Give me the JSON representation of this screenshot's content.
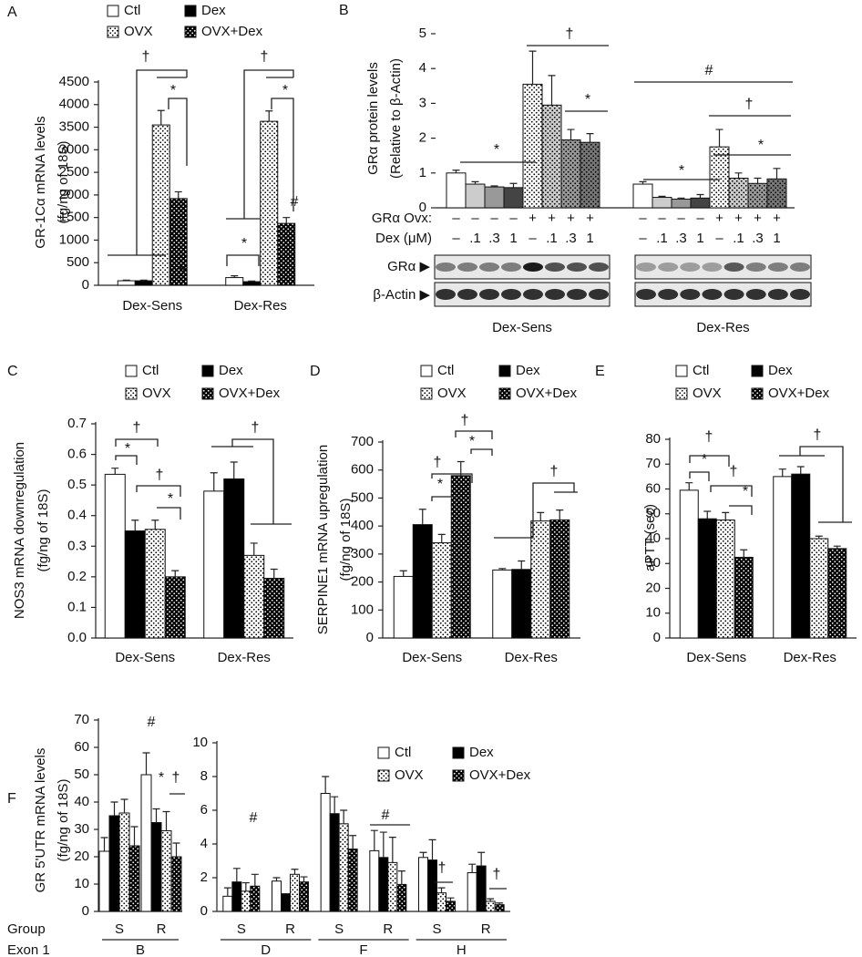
{
  "chart_data": [
    {
      "type": "bar",
      "label": "A",
      "ylabel": [
        "GR-1Cα mRNA levels",
        "(fg/ng of 18S)"
      ],
      "categories": [
        "Dex-Sens",
        "Dex-Res"
      ],
      "series": [
        {
          "name": "Ctl",
          "color": "#ffffff",
          "pattern": "solid",
          "values": [
            100,
            170
          ],
          "errors": [
            15,
            40
          ]
        },
        {
          "name": "Dex",
          "color": "#000000",
          "pattern": "solid",
          "values": [
            100,
            80
          ],
          "errors": [
            15,
            15
          ]
        },
        {
          "name": "OVX",
          "color": "#ffffff",
          "pattern": "dots",
          "values": [
            3550,
            3630
          ],
          "errors": [
            320,
            230
          ]
        },
        {
          "name": "OVX+Dex",
          "color": "#000000",
          "pattern": "dots",
          "values": [
            1920,
            1370
          ],
          "errors": [
            150,
            130
          ]
        }
      ],
      "ylim": [
        0,
        4500
      ],
      "yticks": [
        0,
        500,
        1000,
        1500,
        2000,
        2500,
        3000,
        3500,
        4000,
        4500
      ],
      "annotations": [
        "†",
        "*",
        "†",
        "*",
        "#",
        "*",
        "#"
      ]
    },
    {
      "type": "bar",
      "label": "B",
      "ylabel": [
        "GRα protein levels",
        "(Relative to β-Actin)"
      ],
      "groups": [
        "Dex-Sens",
        "Dex-Res"
      ],
      "values": [
        1.0,
        0.68,
        0.6,
        0.58,
        3.55,
        2.95,
        1.95,
        1.88,
        0.68,
        0.3,
        0.25,
        0.28,
        1.75,
        0.85,
        0.7,
        0.83
      ],
      "errors": [
        0.08,
        0.07,
        0.03,
        0.12,
        0.95,
        0.85,
        0.3,
        0.25,
        0.07,
        0.03,
        0.03,
        0.1,
        0.5,
        0.15,
        0.15,
        0.3
      ],
      "colors": [
        "#ffffff",
        "#cccccc",
        "#999999",
        "#444444",
        "#ffffff",
        "#cccccc",
        "#999999",
        "#777777",
        "#ffffff",
        "#cccccc",
        "#999999",
        "#444444",
        "#ffffff",
        "#cccccc",
        "#999999",
        "#777777"
      ],
      "dotted": [
        false,
        false,
        false,
        false,
        true,
        true,
        true,
        true,
        false,
        false,
        false,
        false,
        true,
        true,
        true,
        true
      ],
      "row_labels": [
        "GRα Ovx:",
        "Dex (μM)"
      ],
      "ovx": [
        "–",
        "–",
        "–",
        "–",
        "+",
        "+",
        "+",
        "+",
        "–",
        "–",
        "–",
        "–",
        "+",
        "+",
        "+",
        "+"
      ],
      "dex": [
        "–",
        ".1",
        ".3",
        "1",
        "–",
        ".1",
        ".3",
        "1",
        "–",
        ".1",
        ".3",
        "1",
        "–",
        ".1",
        ".3",
        "1"
      ],
      "blot_labels": [
        "GRα ▶",
        "β-Actin ▶"
      ],
      "ylim": [
        0,
        5
      ],
      "yticks": [
        0,
        1,
        2,
        3,
        4,
        5
      ],
      "annotations": [
        "*",
        "†",
        "*",
        "#",
        "†",
        "*",
        "*"
      ]
    },
    {
      "type": "bar",
      "label": "C",
      "ylabel": [
        "NOS3 mRNA downregulation",
        "(fg/ng of 18S)"
      ],
      "categories": [
        "Dex-Sens",
        "Dex-Res"
      ],
      "series": [
        {
          "name": "Ctl",
          "color": "#ffffff",
          "pattern": "solid",
          "values": [
            0.535,
            0.48
          ],
          "errors": [
            0.02,
            0.06
          ]
        },
        {
          "name": "Dex",
          "color": "#000000",
          "pattern": "solid",
          "values": [
            0.35,
            0.52
          ],
          "errors": [
            0.035,
            0.055
          ]
        },
        {
          "name": "OVX",
          "color": "#ffffff",
          "pattern": "dots",
          "values": [
            0.355,
            0.27
          ],
          "errors": [
            0.03,
            0.04
          ]
        },
        {
          "name": "OVX+Dex",
          "color": "#000000",
          "pattern": "dots",
          "values": [
            0.2,
            0.195
          ],
          "errors": [
            0.02,
            0.03
          ]
        }
      ],
      "ylim": [
        0,
        0.7
      ],
      "yticks": [
        {
          "value": 0,
          "label": "0.0"
        },
        0.1,
        0.2,
        0.3,
        0.4,
        0.5,
        0.6,
        0.7
      ],
      "annotations": [
        "†",
        "*",
        "†",
        "*",
        "†"
      ]
    },
    {
      "type": "bar",
      "label": "D",
      "ylabel": [
        "SERPINE1 mRNA upregulation",
        "(fg/ng of 18S)"
      ],
      "categories": [
        "Dex-Sens",
        "Dex-Res"
      ],
      "series": [
        {
          "name": "Ctl",
          "color": "#ffffff",
          "pattern": "solid",
          "values": [
            220,
            243
          ],
          "errors": [
            20,
            5
          ]
        },
        {
          "name": "Dex",
          "color": "#000000",
          "pattern": "solid",
          "values": [
            405,
            245
          ],
          "errors": [
            55,
            30
          ]
        },
        {
          "name": "OVX",
          "color": "#ffffff",
          "pattern": "dots",
          "values": [
            340,
            418
          ],
          "errors": [
            30,
            30
          ]
        },
        {
          "name": "OVX+Dex",
          "color": "#000000",
          "pattern": "dots",
          "values": [
            580,
            422
          ],
          "errors": [
            50,
            35
          ]
        }
      ],
      "ylim": [
        0,
        700
      ],
      "yticks": [
        0,
        100,
        200,
        300,
        400,
        500,
        600,
        700
      ],
      "annotations": [
        "*",
        "†",
        "†",
        "*",
        "†"
      ]
    },
    {
      "type": "bar",
      "label": "E",
      "ylabel": [
        "aPTT (sec)"
      ],
      "categories": [
        "Dex-Sens",
        "Dex-Res"
      ],
      "series": [
        {
          "name": "Ctl",
          "color": "#ffffff",
          "pattern": "solid",
          "values": [
            59.5,
            65
          ],
          "errors": [
            3,
            3
          ]
        },
        {
          "name": "Dex",
          "color": "#000000",
          "pattern": "solid",
          "values": [
            48,
            66
          ],
          "errors": [
            3,
            3
          ]
        },
        {
          "name": "OVX",
          "color": "#ffffff",
          "pattern": "dots",
          "values": [
            47.5,
            40
          ],
          "errors": [
            3,
            1
          ]
        },
        {
          "name": "OVX+Dex",
          "color": "#000000",
          "pattern": "dots",
          "values": [
            32.5,
            36
          ],
          "errors": [
            3,
            1
          ]
        }
      ],
      "ylim": [
        0,
        80
      ],
      "yticks": [
        0,
        10,
        20,
        30,
        40,
        50,
        60,
        70,
        80
      ],
      "annotations": [
        "†",
        "*",
        "†",
        "*",
        "†"
      ]
    },
    {
      "type": "bar",
      "label": "F",
      "ylabel": [
        "GR 5'UTR mRNA levels",
        "(fg/ng of 18S)"
      ],
      "row_labels": [
        "Group",
        "Exon 1"
      ],
      "categories": [
        "S",
        "R"
      ],
      "exons": [
        "B"
      ],
      "series": [
        {
          "name": "Ctl",
          "color": "#ffffff",
          "pattern": "solid",
          "values": [
            22,
            50
          ],
          "errors": [
            5,
            8
          ]
        },
        {
          "name": "Dex",
          "color": "#000000",
          "pattern": "solid",
          "values": [
            35,
            32.5
          ],
          "errors": [
            5,
            5
          ]
        },
        {
          "name": "OVX",
          "color": "#ffffff",
          "pattern": "dots",
          "values": [
            36,
            29.5
          ],
          "errors": [
            5,
            7
          ]
        },
        {
          "name": "OVX+Dex",
          "color": "#000000",
          "pattern": "dots",
          "values": [
            24,
            20
          ],
          "errors": [
            7,
            5
          ]
        }
      ],
      "ylim": [
        0,
        70
      ],
      "yticks": [
        0,
        10,
        20,
        30,
        40,
        50,
        60,
        70
      ],
      "annotations": [
        "#",
        "*",
        "†"
      ]
    },
    {
      "type": "bar",
      "categories": [
        "S",
        "R",
        "S",
        "R",
        "S",
        "R"
      ],
      "exons": [
        "D",
        "F",
        "H"
      ],
      "series": [
        {
          "name": "Ctl",
          "color": "#ffffff",
          "pattern": "solid",
          "values": [
            0.9,
            1.8,
            7.0,
            3.6,
            3.2,
            2.3
          ],
          "errors": [
            0.5,
            0.2,
            1.0,
            1.2,
            0.3,
            0.5
          ]
        },
        {
          "name": "Dex",
          "color": "#000000",
          "pattern": "solid",
          "values": [
            1.75,
            1.05,
            5.8,
            3.2,
            3.05,
            2.7
          ],
          "errors": [
            0.8,
            0.0,
            1.0,
            1.5,
            1.2,
            0.8
          ]
        },
        {
          "name": "OVX",
          "color": "#ffffff",
          "pattern": "dots",
          "values": [
            1.2,
            2.2,
            5.2,
            2.9,
            1.1,
            0.6
          ],
          "errors": [
            0.5,
            0.3,
            0.8,
            1.5,
            0.3,
            0.15
          ]
        },
        {
          "name": "OVX+Dex",
          "color": "#000000",
          "pattern": "dots",
          "values": [
            1.5,
            1.75,
            3.7,
            1.6,
            0.6,
            0.4
          ],
          "errors": [
            0.7,
            0.3,
            0.8,
            0.8,
            0.2,
            0.1
          ]
        }
      ],
      "ylim": [
        0,
        10
      ],
      "yticks": [
        0,
        2,
        4,
        6,
        8,
        10
      ],
      "annotations": [
        "#",
        "#",
        "†",
        "†"
      ]
    }
  ]
}
